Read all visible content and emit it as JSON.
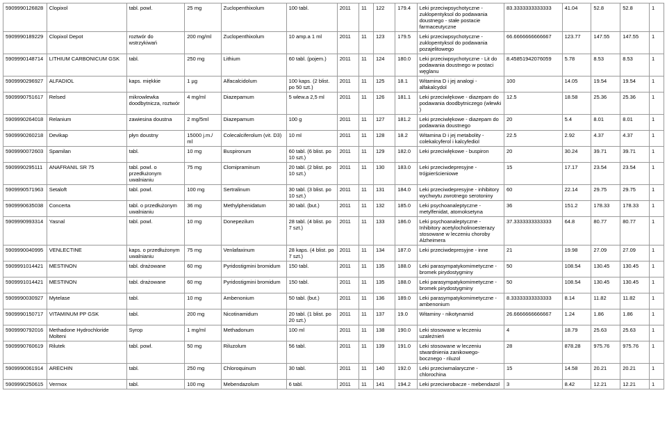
{
  "table": {
    "column_classes": [
      "c0",
      "c1",
      "c2",
      "c3",
      "c4",
      "c5",
      "c6",
      "c7",
      "c8",
      "c9",
      "c10",
      "c11",
      "c12",
      "c13",
      "c14",
      "c15"
    ],
    "rows": [
      [
        "5909990126828",
        "Clopixol",
        "tabl. powl.",
        "25 mg",
        "Zuclopenthixolum",
        "100 tabl.",
        "2011",
        "11",
        "122",
        "179.4",
        "Leki przeciwpsychotyczne - zuklopentyksol do podawania doustnego - stałe postacie farmaceutyczne",
        "83.3333333333333",
        "41.04",
        "52.8",
        "52.8",
        "1"
      ],
      [
        "5909990189229",
        "Clopixol Depot",
        "roztwór do wstrzykiwań",
        "200 mg/ml",
        "Zuclopenthixolum",
        "10 amp.a 1 ml",
        "2011",
        "11",
        "123",
        "179.5",
        "Leki przeciwpsychotyczne - zuklopentyksol do podawania pozajelitowego",
        "66.6666666666667",
        "123.77",
        "147.55",
        "147.55",
        "1"
      ],
      [
        "5909990148714",
        "LITHIUM CARBONICUM GSK",
        "tabl.",
        "250 mg",
        "Lithium",
        "60 tabl. (pojem.)",
        "2011",
        "11",
        "124",
        "180.0",
        "Leki przeciwpsychotyczne - Lit do podawania doustnego w postaci węglanu",
        "8.45851942076059",
        "5.78",
        "8.53",
        "8.53",
        "1"
      ],
      [
        "5909990296927",
        "ALFADIOL",
        "kaps. miękkie",
        "1 µg",
        "Alfacalcidolum",
        "100 kaps. (2 blist. po 50 szt.)",
        "2011",
        "11",
        "125",
        "18.1",
        "Witamina D i jej analogi - alfakalcydol",
        "100",
        "14.05",
        "19.54",
        "19.54",
        "1"
      ],
      [
        "5909990751617",
        "Relsed",
        "mikrowlewka doodbytnicza, roztwór",
        "4 mg/ml",
        "Diazepamum",
        "5 wlew.a 2,5 ml",
        "2011",
        "11",
        "126",
        "181.1",
        "Leki przeciwlękowe - diazepam do podawania doodbytniczego (wlewki )",
        "12.5",
        "18.58",
        "25.36",
        "25.36",
        "1"
      ],
      [
        "5909990264018",
        "Relanium",
        "zawiesina doustna",
        "2 mg/5ml",
        "Diazepamum",
        "100 g",
        "2011",
        "11",
        "127",
        "181.2",
        "Leki przeciwlękowe - diazepam do podawania doustnego",
        "20",
        "5.4",
        "8.01",
        "8.01",
        "1"
      ],
      [
        "5909990260218",
        "Devikap",
        "płyn doustny",
        "15000 j.m./ ml",
        "Colecalciferolum (vit. D3)",
        "10 ml",
        "2011",
        "11",
        "128",
        "18.2",
        "Witamina D i jej metabolity - colekalcyferol i kalcyfediol",
        "22.5",
        "2.92",
        "4.37",
        "4.37",
        "1"
      ],
      [
        "5909990072603",
        "Spamilan",
        "tabl.",
        "10 mg",
        "Buspironum",
        "60 tabl. (6 blist. po 10 szt.)",
        "2011",
        "11",
        "129",
        "182.0",
        "Leki przeciwlękowe - buspiron",
        "20",
        "30.24",
        "39.71",
        "39.71",
        "1"
      ],
      [
        "5909990295111",
        "ANAFRANIL SR 75",
        "tabl. powl. o przedłużonym uwalnianiu",
        "75 mg",
        "Clomipraminum",
        "20 tabl. (2 blist. po 10 szt.)",
        "2011",
        "11",
        "130",
        "183.0",
        "Leki przeciwdepresyjne - trójpierścieniowe",
        "15",
        "17.17",
        "23.54",
        "23.54",
        "1"
      ],
      [
        "5909990571963",
        "Setaloft",
        "tabl. powl.",
        "100 mg",
        "Sertralinum",
        "30 tabl. (3 blist. po 10 szt.)",
        "2011",
        "11",
        "131",
        "184.0",
        "Leki przeciwdepresyjne - inhibitory wychwytu zwrotnego serotoniny",
        "60",
        "22.14",
        "29.75",
        "29.75",
        "1"
      ],
      [
        "5909990635038",
        "Concerta",
        "tabl. o przedłużonym uwalnianiu",
        "36 mg",
        "Methylphenidatum",
        "30 tabl. (but.)",
        "2011",
        "11",
        "132",
        "185.0",
        "Leki psychoanaleptyczne - metylfenidat, atomoksetyna",
        "36",
        "151.2",
        "178.33",
        "178.33",
        "1"
      ],
      [
        "5909990993314",
        "Yasnal",
        "tabl. powl.",
        "10 mg",
        "Donepezilum",
        "28 tabl. (4 blist. po 7 szt.)",
        "2011",
        "11",
        "133",
        "186.0",
        "Leki psychoanaleptyczne - Inhibitory acetylocholinoesterazy stosowane w leczeniu choroby Alzheimera",
        "37.3333333333333",
        "64.8",
        "80.77",
        "80.77",
        "1"
      ],
      [
        "5909990040995",
        "VENLECTINE",
        "kaps. o przedłużonym uwalnianiu",
        "75 mg",
        "Venlafaxinum",
        "28 kaps. (4 blist. po 7 szt.)",
        "2011",
        "11",
        "134",
        "187.0",
        "Leki przeciwdepresyjne - inne",
        "21",
        "19.98",
        "27.09",
        "27.09",
        "1"
      ],
      [
        "5909991014421",
        "MESTINON",
        "tabl. drażowane",
        "60 mg",
        "Pyridostigmini bromidum",
        "150 tabl.",
        "2011",
        "11",
        "135",
        "188.0",
        "Leki parasympatykomimetyczne - bromek pirydostygminy",
        "50",
        "108.54",
        "130.45",
        "130.45",
        "1"
      ],
      [
        "5909991014421",
        "MESTINON",
        "tabl. drażowane",
        "60 mg",
        "Pyridostigmini bromidum",
        "150 tabl.",
        "2011",
        "11",
        "135",
        "188.0",
        "Leki parasympatykomimetyczne - bromek pirydostygminy",
        "50",
        "108.54",
        "130.45",
        "130.45",
        "1"
      ],
      [
        "5909990030927",
        "Mytelase",
        "tabl.",
        "10 mg",
        "Ambenonium",
        "50 tabl. (but.)",
        "2011",
        "11",
        "136",
        "189.0",
        "Leki parasympatykomimetyczne - ambenonium",
        "8.33333333333333",
        "8.14",
        "11.82",
        "11.82",
        "1"
      ],
      [
        "5909990150717",
        "VITAMINUM PP GSK",
        "tabl.",
        "200 mg",
        "Nicotinamidum",
        "20 tabl. (1 blist. po 20 szt.)",
        "2011",
        "11",
        "137",
        "19.0",
        "Witaminy - nikotynamid",
        "26.6666666666667",
        "1.24",
        "1.86",
        "1.86",
        "1"
      ],
      [
        "5909990792016",
        "Methadone Hydrochloride Molteni",
        "Syrop",
        "1 mg/ml",
        "Methadonum",
        "100 ml",
        "2011",
        "11",
        "138",
        "190.0",
        "Leki stosowane w leczeniu uzależnień",
        "4",
        "18.79",
        "25.63",
        "25.63",
        "1"
      ],
      [
        "5909990760619",
        "Rilutek",
        "tabl. powl.",
        "50 mg",
        "Riluzolum",
        "56 tabl.",
        "2011",
        "11",
        "139",
        "191.0",
        "Leki stosowane w leczeniu stwardnienia zanikowego-bocznego - riluzol",
        "28",
        "878.28",
        "975.76",
        "975.76",
        "1"
      ],
      [
        "5909990061914",
        "ARECHIN",
        "tabl.",
        "250 mg",
        "Chloroquinum",
        "30 tabl.",
        "2011",
        "11",
        "140",
        "192.0",
        "Leki przeciwmalaryczne - chlorochina",
        "15",
        "14.58",
        "20.21",
        "20.21",
        "1"
      ],
      [
        "5909990250615",
        "Vermox",
        "tabl.",
        "100 mg",
        "Mebendazolum",
        "6 tabl.",
        "2011",
        "11",
        "141",
        "194.2",
        "Leki przeciwrobacze - mebendazol",
        "3",
        "8.42",
        "12.21",
        "12.21",
        "1"
      ]
    ]
  }
}
